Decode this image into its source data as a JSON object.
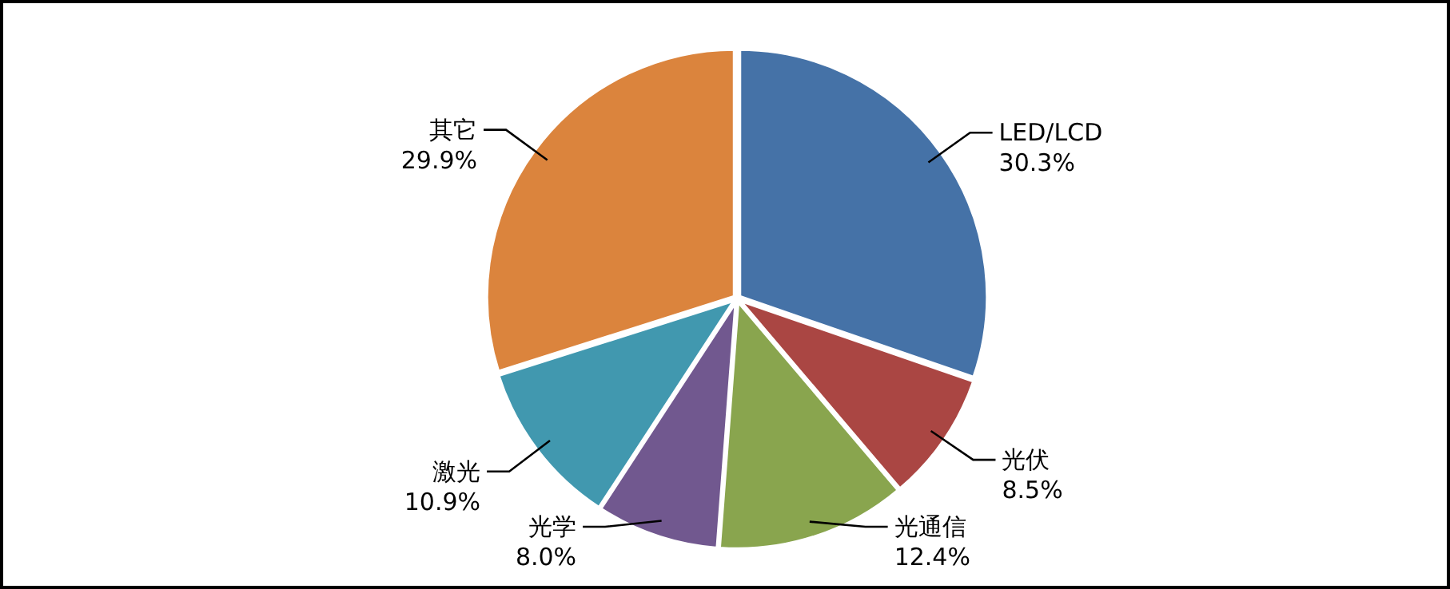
{
  "chart_data": {
    "type": "pie",
    "categories": [
      "LED/LCD",
      "光伏",
      "光通信",
      "光学",
      "激光",
      "其它"
    ],
    "values": [
      30.3,
      8.5,
      12.4,
      8.0,
      10.9,
      29.9
    ],
    "value_labels": [
      "30.3%",
      "8.5%",
      "12.4%",
      "8.0%",
      "10.9%",
      "29.9%"
    ],
    "colors": [
      "#4572a7",
      "#aa4643",
      "#89a54e",
      "#71588f",
      "#4198af",
      "#db843d"
    ],
    "legend": false
  }
}
